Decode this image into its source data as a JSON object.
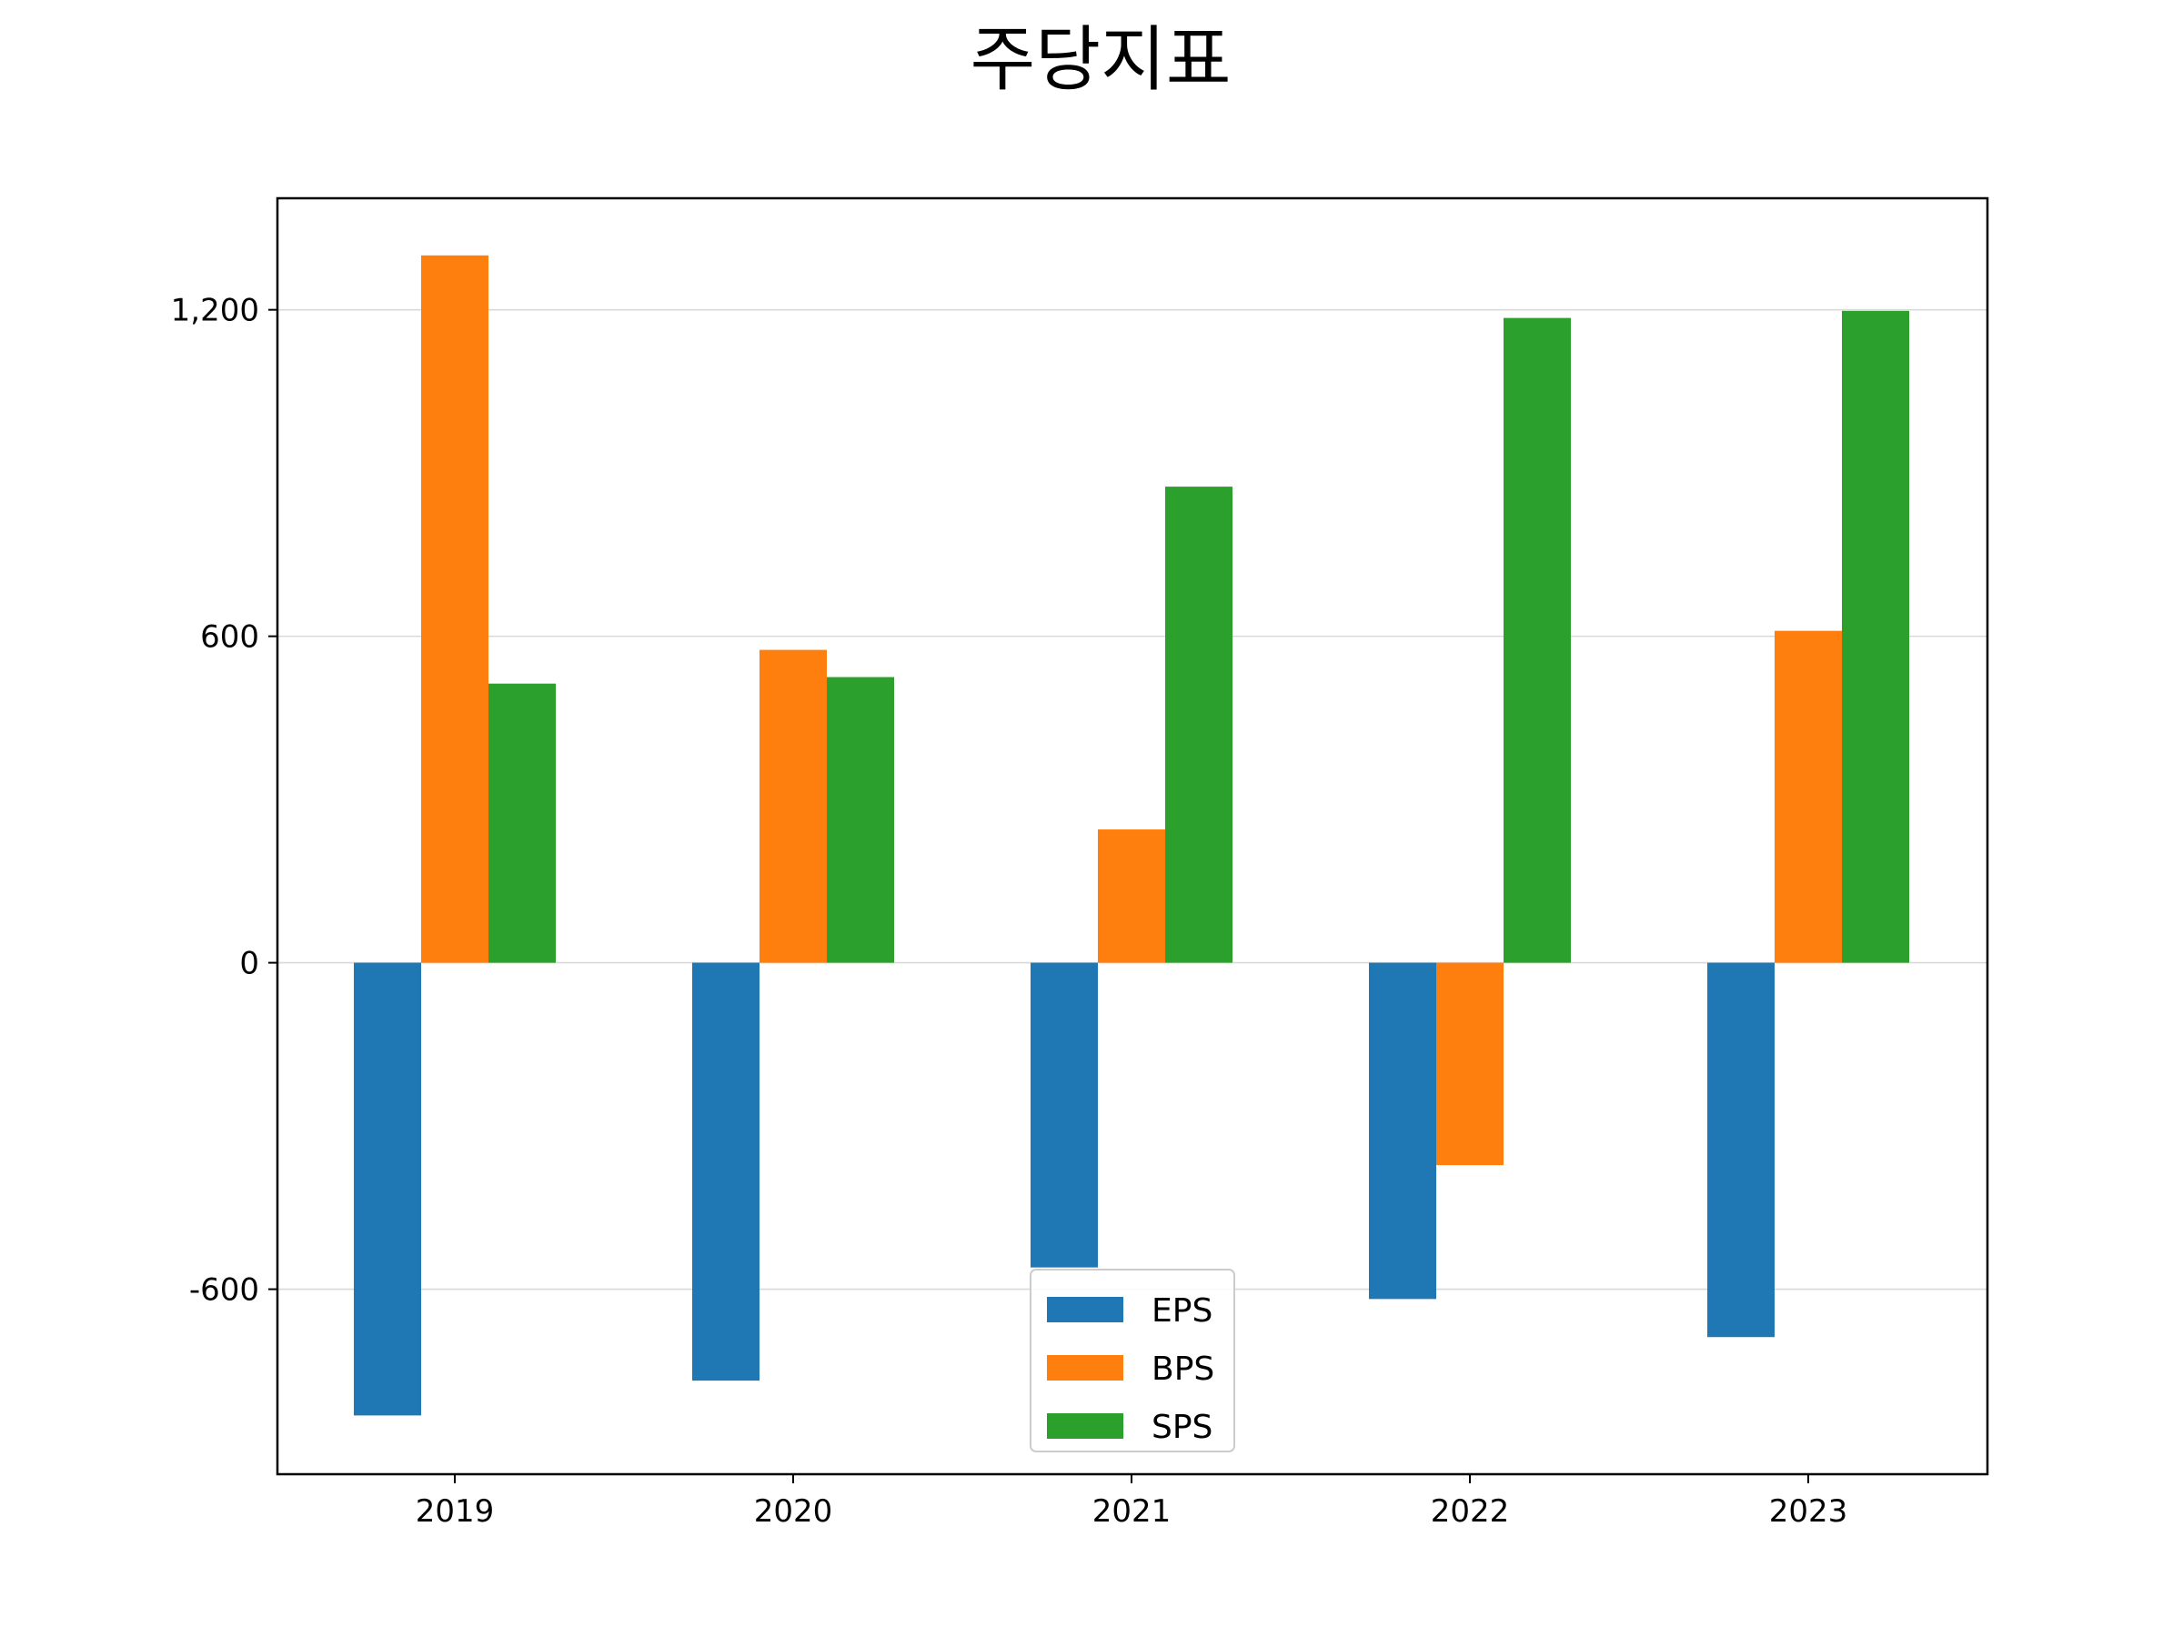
{
  "chart_data": {
    "type": "bar",
    "title": "주당지표",
    "xlabel": "",
    "ylabel": "",
    "categories": [
      "2019",
      "2020",
      "2021",
      "2022",
      "2023"
    ],
    "series": [
      {
        "name": "EPS",
        "color": "#1f77b4",
        "values": [
          -832,
          -768,
          -560,
          -618,
          -688
        ]
      },
      {
        "name": "BPS",
        "color": "#ff7f0e",
        "values": [
          1300,
          575,
          245,
          -372,
          610
        ]
      },
      {
        "name": "SPS",
        "color": "#2ca02c",
        "values": [
          513,
          525,
          875,
          1185,
          1198
        ]
      }
    ],
    "ylim": [
      -940,
      1405
    ],
    "yticks": [
      -600,
      0,
      600,
      1200
    ],
    "ytick_labels": [
      "-600",
      "0",
      "600",
      "1,200"
    ],
    "grid": "horizontal",
    "legend_position": "lower center"
  }
}
